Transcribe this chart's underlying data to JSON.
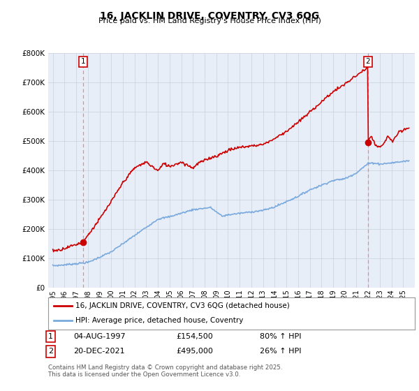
{
  "title": "16, JACKLIN DRIVE, COVENTRY, CV3 6QG",
  "subtitle": "Price paid vs. HM Land Registry's House Price Index (HPI)",
  "ylim": [
    0,
    800000
  ],
  "yticks": [
    0,
    100000,
    200000,
    300000,
    400000,
    500000,
    600000,
    700000,
    800000
  ],
  "ytick_labels": [
    "£0",
    "£100K",
    "£200K",
    "£300K",
    "£400K",
    "£500K",
    "£600K",
    "£700K",
    "£800K"
  ],
  "plot_bg_color": "#e8eef8",
  "grid_color": "#c8d0dc",
  "transaction1": {
    "date_num": 1997.58,
    "price": 154500,
    "label": "1",
    "date_str": "04-AUG-1997",
    "hpi_change": "80% ↑ HPI"
  },
  "transaction2": {
    "date_num": 2021.97,
    "price": 495000,
    "label": "2",
    "date_str": "20-DEC-2021",
    "hpi_change": "26% ↑ HPI"
  },
  "legend_entry1": "16, JACKLIN DRIVE, COVENTRY, CV3 6QG (detached house)",
  "legend_entry2": "HPI: Average price, detached house, Coventry",
  "footer": "Contains HM Land Registry data © Crown copyright and database right 2025.\nThis data is licensed under the Open Government Licence v3.0.",
  "red_color": "#cc0000",
  "blue_color": "#7aaadd",
  "dashed_color": "#ee8888"
}
